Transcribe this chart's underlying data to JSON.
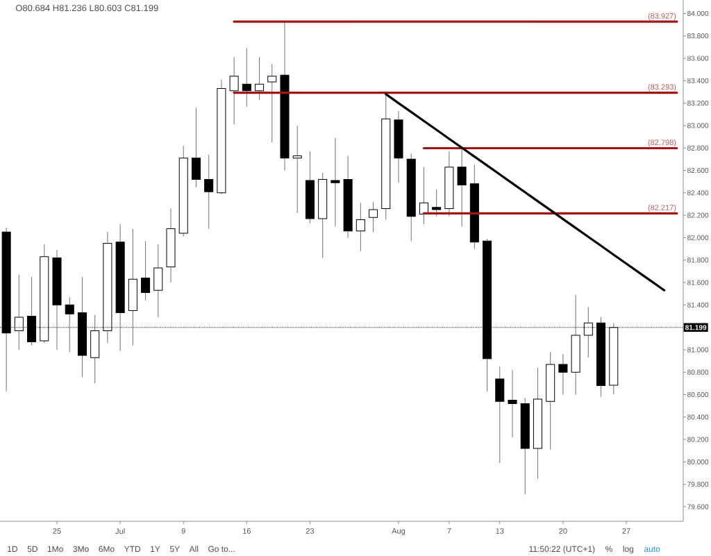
{
  "chart_data": {
    "type": "candlestick",
    "categories": [
      null,
      null,
      null,
      null,
      "25",
      null,
      null,
      null,
      null,
      "Jul",
      null,
      null,
      null,
      null,
      "9",
      null,
      null,
      null,
      null,
      "16",
      null,
      null,
      null,
      null,
      "23",
      null,
      null,
      null,
      null,
      null,
      null,
      "Aug",
      null,
      null,
      null,
      "7",
      null,
      null,
      null,
      "13",
      null,
      null,
      null,
      null,
      "20",
      null,
      null,
      null,
      null,
      "27",
      null,
      null,
      null,
      null
    ],
    "ohlc": [
      [
        82.05,
        82.09,
        80.63,
        81.15
      ],
      [
        81.17,
        81.67,
        81.0,
        81.29
      ],
      [
        81.3,
        81.65,
        81.04,
        81.07
      ],
      [
        81.08,
        81.94,
        81.06,
        81.83
      ],
      [
        81.82,
        81.89,
        81.0,
        81.4
      ],
      [
        81.4,
        81.47,
        80.98,
        81.32
      ],
      [
        81.33,
        81.65,
        80.76,
        80.95
      ],
      [
        80.93,
        81.31,
        80.7,
        81.17
      ],
      [
        81.17,
        82.05,
        81.06,
        81.95
      ],
      [
        81.96,
        82.12,
        80.99,
        81.33
      ],
      [
        81.35,
        82.08,
        81.04,
        81.63
      ],
      [
        81.64,
        81.97,
        81.44,
        81.51
      ],
      [
        81.53,
        81.94,
        81.29,
        81.73
      ],
      [
        81.74,
        82.26,
        81.6,
        82.08
      ],
      [
        82.04,
        82.82,
        82.01,
        82.71
      ],
      [
        82.71,
        83.16,
        82.45,
        82.52
      ],
      [
        82.52,
        82.74,
        82.08,
        82.41
      ],
      [
        82.4,
        83.41,
        82.39,
        83.33
      ],
      [
        83.31,
        83.61,
        83.01,
        83.44
      ],
      [
        83.37,
        83.69,
        83.17,
        83.31
      ],
      [
        83.31,
        83.61,
        83.23,
        83.37
      ],
      [
        83.39,
        83.55,
        82.85,
        83.44
      ],
      [
        83.45,
        83.93,
        82.6,
        82.71
      ],
      [
        82.71,
        83.0,
        82.22,
        82.73
      ],
      [
        82.51,
        82.77,
        82.13,
        82.17
      ],
      [
        82.17,
        82.58,
        81.82,
        82.52
      ],
      [
        82.51,
        82.89,
        82.1,
        82.49
      ],
      [
        82.52,
        82.73,
        82.0,
        82.06
      ],
      [
        82.06,
        82.31,
        81.88,
        82.16
      ],
      [
        82.18,
        82.32,
        82.05,
        82.25
      ],
      [
        82.26,
        83.28,
        82.16,
        83.06
      ],
      [
        83.05,
        83.13,
        82.49,
        82.71
      ],
      [
        82.7,
        82.75,
        81.97,
        82.19
      ],
      [
        82.21,
        82.63,
        82.12,
        82.31
      ],
      [
        82.27,
        82.43,
        82.19,
        82.25
      ],
      [
        82.26,
        82.77,
        82.19,
        82.63
      ],
      [
        82.63,
        82.81,
        82.1,
        82.47
      ],
      [
        82.48,
        82.65,
        81.9,
        81.96
      ],
      [
        81.97,
        81.99,
        80.63,
        80.92
      ],
      [
        80.74,
        80.85,
        79.99,
        80.54
      ],
      [
        80.55,
        80.82,
        80.22,
        80.52
      ],
      [
        80.52,
        80.57,
        79.71,
        80.12
      ],
      [
        80.12,
        80.84,
        79.85,
        80.56
      ],
      [
        80.54,
        80.98,
        80.11,
        80.87
      ],
      [
        80.87,
        80.96,
        80.6,
        80.8
      ],
      [
        80.8,
        81.49,
        80.6,
        81.13
      ],
      [
        81.13,
        81.38,
        80.93,
        81.24
      ],
      [
        81.24,
        81.29,
        80.58,
        80.68
      ],
      [
        80.684,
        81.236,
        80.603,
        81.199
      ],
      null,
      null,
      null,
      null,
      null
    ],
    "colors": [
      "#000000",
      "#ffffff",
      "#000000",
      "#ffffff",
      "#000000",
      "#000000",
      "#000000",
      "#ffffff",
      "#ffffff",
      "#000000",
      "#ffffff",
      "#000000",
      "#ffffff",
      "#ffffff",
      "#ffffff",
      "#000000",
      "#000000",
      "#ffffff",
      "#ffffff",
      "#000000",
      "#ffffff",
      "#ffffff",
      "#000000",
      "#ffffff",
      "#000000",
      "#ffffff",
      "#000000",
      "#000000",
      "#ffffff",
      "#ffffff",
      "#ffffff",
      "#000000",
      "#000000",
      "#ffffff",
      "#000000",
      "#ffffff",
      "#000000",
      "#000000",
      "#000000",
      "#000000",
      "#000000",
      "#000000",
      "#ffffff",
      "#ffffff",
      "#000000",
      "#ffffff",
      "#ffffff",
      "#000000",
      "#ffffff",
      null,
      null,
      null,
      null,
      null
    ],
    "series": [
      {
        "type": "line",
        "color": "#a31515",
        "values": [
          null,
          null,
          null,
          null,
          null,
          null,
          null,
          null,
          null,
          null,
          null,
          null,
          null,
          null,
          null,
          null,
          null,
          null,
          83.927,
          83.927,
          83.927,
          83.927,
          83.927,
          83.927,
          83.927,
          83.927,
          83.927,
          83.927,
          83.927,
          83.927,
          83.927,
          83.927,
          83.927,
          83.927,
          83.927,
          83.927,
          83.927,
          83.927,
          83.927,
          83.927,
          83.927,
          83.927,
          83.927,
          83.927,
          83.927,
          83.927,
          83.927,
          83.927,
          83.927,
          83.927,
          83.927,
          83.927,
          83.927,
          83.927
        ],
        "value_labels": [
          null,
          null,
          null,
          null,
          null,
          null,
          null,
          null,
          null,
          null,
          null,
          null,
          null,
          null,
          null,
          null,
          null,
          null,
          null,
          null,
          null,
          null,
          null,
          null,
          null,
          null,
          null,
          null,
          null,
          null,
          null,
          null,
          null,
          null,
          null,
          null,
          null,
          null,
          null,
          null,
          null,
          null,
          null,
          null,
          null,
          null,
          null,
          null,
          null,
          null,
          null,
          null,
          null,
          "(83.927)"
        ]
      },
      {
        "type": "line",
        "color": "#a31515",
        "values": [
          null,
          null,
          null,
          null,
          null,
          null,
          null,
          null,
          null,
          null,
          null,
          null,
          null,
          null,
          null,
          null,
          null,
          null,
          83.293,
          83.293,
          83.293,
          83.293,
          83.293,
          83.293,
          83.293,
          83.293,
          83.293,
          83.293,
          83.293,
          83.293,
          83.293,
          83.293,
          83.293,
          83.293,
          83.293,
          83.293,
          83.293,
          83.293,
          83.293,
          83.293,
          83.293,
          83.293,
          83.293,
          83.293,
          83.293,
          83.293,
          83.293,
          83.293,
          83.293,
          83.293,
          83.293,
          83.293,
          83.293,
          83.293
        ],
        "value_labels": [
          null,
          null,
          null,
          null,
          null,
          null,
          null,
          null,
          null,
          null,
          null,
          null,
          null,
          null,
          null,
          null,
          null,
          null,
          null,
          null,
          null,
          null,
          null,
          null,
          null,
          null,
          null,
          null,
          null,
          null,
          null,
          null,
          null,
          null,
          null,
          null,
          null,
          null,
          null,
          null,
          null,
          null,
          null,
          null,
          null,
          null,
          null,
          null,
          null,
          null,
          null,
          null,
          null,
          "(83.293)"
        ]
      },
      {
        "type": "line",
        "color": "#a31515",
        "values": [
          null,
          null,
          null,
          null,
          null,
          null,
          null,
          null,
          null,
          null,
          null,
          null,
          null,
          null,
          null,
          null,
          null,
          null,
          null,
          null,
          null,
          null,
          null,
          null,
          null,
          null,
          null,
          null,
          null,
          null,
          null,
          null,
          null,
          82.798,
          82.798,
          82.798,
          82.798,
          82.798,
          82.798,
          82.798,
          82.798,
          82.798,
          82.798,
          82.798,
          82.798,
          82.798,
          82.798,
          82.798,
          82.798,
          82.798,
          82.798,
          82.798,
          82.798,
          82.798
        ],
        "value_labels": [
          null,
          null,
          null,
          null,
          null,
          null,
          null,
          null,
          null,
          null,
          null,
          null,
          null,
          null,
          null,
          null,
          null,
          null,
          null,
          null,
          null,
          null,
          null,
          null,
          null,
          null,
          null,
          null,
          null,
          null,
          null,
          null,
          null,
          null,
          null,
          null,
          null,
          null,
          null,
          null,
          null,
          null,
          null,
          null,
          null,
          null,
          null,
          null,
          null,
          null,
          null,
          null,
          null,
          "(82.798)"
        ]
      },
      {
        "type": "line",
        "color": "#a31515",
        "values": [
          null,
          null,
          null,
          null,
          null,
          null,
          null,
          null,
          null,
          null,
          null,
          null,
          null,
          null,
          null,
          null,
          null,
          null,
          null,
          null,
          null,
          null,
          null,
          null,
          null,
          null,
          null,
          null,
          null,
          null,
          null,
          null,
          null,
          82.217,
          82.217,
          82.217,
          82.217,
          82.217,
          82.217,
          82.217,
          82.217,
          82.217,
          82.217,
          82.217,
          82.217,
          82.217,
          82.217,
          82.217,
          82.217,
          82.217,
          82.217,
          82.217,
          82.217,
          82.217
        ],
        "value_labels": [
          null,
          null,
          null,
          null,
          null,
          null,
          null,
          null,
          null,
          null,
          null,
          null,
          null,
          null,
          null,
          null,
          null,
          null,
          null,
          null,
          null,
          null,
          null,
          null,
          null,
          null,
          null,
          null,
          null,
          null,
          null,
          null,
          null,
          null,
          null,
          null,
          null,
          null,
          null,
          null,
          null,
          null,
          null,
          null,
          null,
          null,
          null,
          null,
          null,
          null,
          null,
          null,
          null,
          "(82.217)"
        ]
      },
      {
        "type": "line",
        "color": "#000000",
        "values": [
          null,
          null,
          null,
          null,
          null,
          null,
          null,
          null,
          null,
          null,
          null,
          null,
          null,
          null,
          null,
          null,
          null,
          null,
          null,
          null,
          null,
          null,
          null,
          null,
          null,
          null,
          null,
          null,
          null,
          null,
          83.28,
          83.2,
          83.121,
          83.041,
          82.962,
          82.882,
          82.803,
          82.723,
          82.644,
          82.564,
          82.485,
          82.405,
          82.325,
          82.246,
          82.166,
          82.087,
          82.007,
          81.928,
          81.848,
          81.769,
          81.689,
          81.61,
          81.53,
          null
        ]
      }
    ],
    "ref_lines": [
      {
        "axis": "y",
        "value": 81.199,
        "label": "81.199",
        "color": "#000000",
        "line_style": "dotted"
      }
    ],
    "ylim": [
      79.47,
      84.12
    ],
    "yticks": [
      {
        "value": 79.6,
        "label": "79.600"
      },
      {
        "value": 79.8,
        "label": "79.800"
      },
      {
        "value": 80.0,
        "label": "80.000"
      },
      {
        "value": 80.2,
        "label": "80.200"
      },
      {
        "value": 80.4,
        "label": "80.400"
      },
      {
        "value": 80.6,
        "label": "80.600"
      },
      {
        "value": 80.8,
        "label": "80.800"
      },
      {
        "value": 81.0,
        "label": "81.000"
      },
      {
        "value": 81.4,
        "label": "81.400"
      },
      {
        "value": 81.6,
        "label": "81.600"
      },
      {
        "value": 81.8,
        "label": "81.800"
      },
      {
        "value": 82.0,
        "label": "82.000"
      },
      {
        "value": 82.2,
        "label": "82.200"
      },
      {
        "value": 82.4,
        "label": "82.400"
      },
      {
        "value": 82.6,
        "label": "82.600"
      },
      {
        "value": 82.8,
        "label": "82.800"
      },
      {
        "value": 83.0,
        "label": "83.000"
      },
      {
        "value": 83.2,
        "label": "83.200"
      },
      {
        "value": 83.4,
        "label": "83.400"
      },
      {
        "value": 83.6,
        "label": "83.600"
      },
      {
        "value": 83.8,
        "label": "83.800"
      },
      {
        "value": 84.0,
        "label": "84.000"
      }
    ],
    "annotations": [
      "O80.684 H81.236 L80.603 C81.199",
      "1D",
      "5D",
      "1Mo",
      "3Mo",
      "6Mo",
      "YTD",
      "1Y",
      "5Y",
      "All",
      "Go to...",
      "11:50:22 (UTC+1)",
      "%",
      "log",
      "auto"
    ]
  }
}
